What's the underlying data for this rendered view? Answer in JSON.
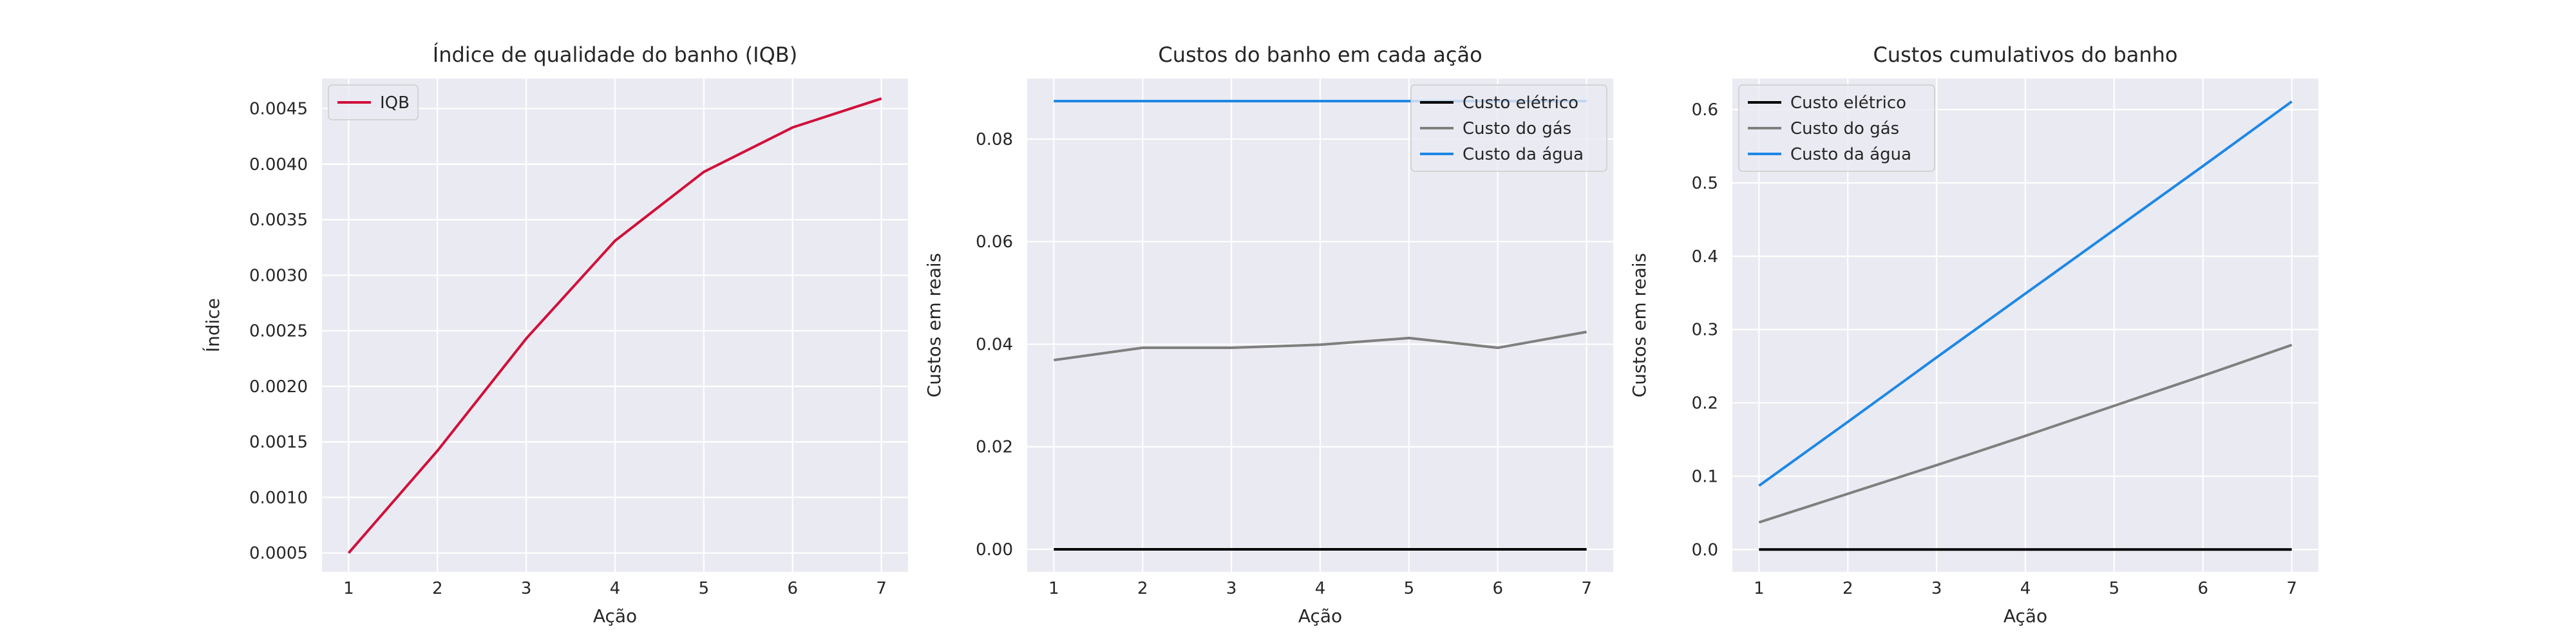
{
  "chart_data": [
    {
      "type": "line",
      "title": "Índice de qualidade do banho (IQB)",
      "xlabel": "Ação",
      "ylabel": "Índice",
      "x": [
        1,
        2,
        3,
        4,
        5,
        6,
        7
      ],
      "xlim": [
        0.7,
        7.3
      ],
      "ylim": [
        0.00033,
        0.00477
      ],
      "xticks": [
        "1",
        "2",
        "3",
        "4",
        "5",
        "6",
        "7"
      ],
      "yticks": [
        "0.0005",
        "0.0010",
        "0.0015",
        "0.0020",
        "0.0025",
        "0.0030",
        "0.0035",
        "0.0040",
        "0.0045"
      ],
      "grid": true,
      "legend_position": "upper-left",
      "series": [
        {
          "name": "IQB",
          "color": "#d0103a",
          "values": [
            0.0005,
            0.00142,
            0.00243,
            0.00331,
            0.00393,
            0.00433,
            0.00459
          ]
        }
      ]
    },
    {
      "type": "line",
      "title": "Custos do banho em cada ação",
      "xlabel": "Ação",
      "ylabel": "Custos em reais",
      "x": [
        1,
        2,
        3,
        4,
        5,
        6,
        7
      ],
      "xlim": [
        0.7,
        7.3
      ],
      "ylim": [
        -0.0044,
        0.0918
      ],
      "xticks": [
        "1",
        "2",
        "3",
        "4",
        "5",
        "6",
        "7"
      ],
      "yticks": [
        "0.00",
        "0.02",
        "0.04",
        "0.06",
        "0.08"
      ],
      "grid": true,
      "legend_position": "upper-right",
      "series": [
        {
          "name": "Custo elétrico",
          "color": "#000000",
          "values": [
            0.0,
            0.0,
            0.0,
            0.0,
            0.0,
            0.0,
            0.0
          ]
        },
        {
          "name": "Custo do gás",
          "color": "#7f7f7f",
          "values": [
            0.0369,
            0.0393,
            0.0393,
            0.0399,
            0.0412,
            0.0393,
            0.0424
          ]
        },
        {
          "name": "Custo da água",
          "color": "#1e88e5",
          "values": [
            0.0874,
            0.0874,
            0.0874,
            0.0874,
            0.0874,
            0.0874,
            0.0874
          ]
        }
      ]
    },
    {
      "type": "line",
      "title": "Custos cumulativos do banho",
      "xlabel": "Ação",
      "ylabel": "Custos em reais",
      "x": [
        1,
        2,
        3,
        4,
        5,
        6,
        7
      ],
      "xlim": [
        0.7,
        7.3
      ],
      "ylim": [
        -0.0305,
        0.6423
      ],
      "xticks": [
        "1",
        "2",
        "3",
        "4",
        "5",
        "6",
        "7"
      ],
      "yticks": [
        "0.0",
        "0.1",
        "0.2",
        "0.3",
        "0.4",
        "0.5",
        "0.6"
      ],
      "grid": true,
      "legend_position": "upper-left",
      "series": [
        {
          "name": "Custo elétrico",
          "color": "#000000",
          "values": [
            0.0,
            0.0,
            0.0,
            0.0,
            0.0,
            0.0,
            0.0
          ]
        },
        {
          "name": "Custo do gás",
          "color": "#7f7f7f",
          "values": [
            0.037,
            0.076,
            0.115,
            0.155,
            0.196,
            0.237,
            0.279
          ]
        },
        {
          "name": "Custo da água",
          "color": "#1e88e5",
          "values": [
            0.087,
            0.174,
            0.262,
            0.349,
            0.436,
            0.523,
            0.611
          ]
        }
      ]
    }
  ],
  "style": {
    "plot_background": "#eaeaf2",
    "grid_color": "#ffffff",
    "text_color": "#262626"
  }
}
